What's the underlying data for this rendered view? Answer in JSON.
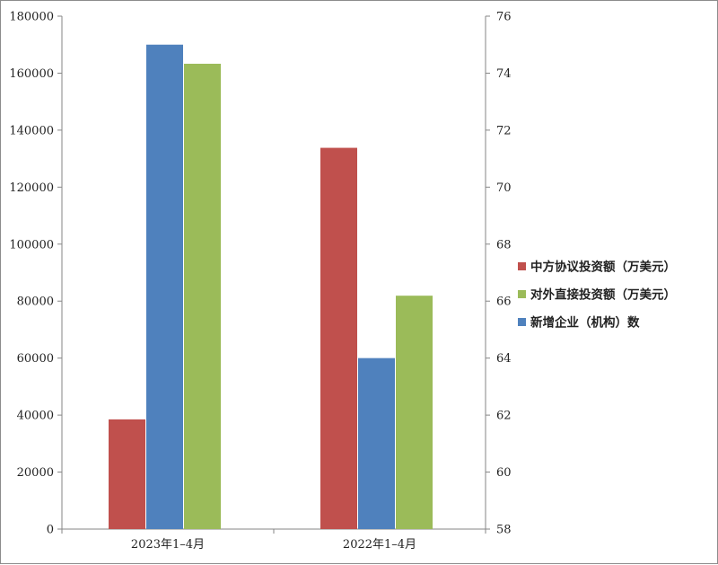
{
  "chart_data": {
    "type": "bar",
    "categories": [
      "2023年1–4月",
      "2022年1–4月"
    ],
    "series": [
      {
        "name": "中方协议投资额（万美元）",
        "axis": "left",
        "color": "#c0504d",
        "values": [
          38500,
          133800
        ]
      },
      {
        "name": "新增企业（机构）数",
        "axis": "right",
        "color": "#4f81bd",
        "values": [
          75,
          64
        ]
      },
      {
        "name": "对外直接投资额（万美元）",
        "axis": "left",
        "color": "#9bbb59",
        "values": [
          163300,
          81900
        ]
      }
    ],
    "y_left": {
      "min": 0,
      "max": 180000,
      "step": 20000,
      "ticks": [
        "0",
        "20000",
        "40000",
        "60000",
        "80000",
        "100000",
        "120000",
        "140000",
        "160000",
        "180000"
      ]
    },
    "y_right": {
      "min": 58,
      "max": 76,
      "step": 2,
      "ticks": [
        "58",
        "60",
        "62",
        "64",
        "66",
        "68",
        "70",
        "72",
        "74",
        "76"
      ]
    },
    "legend": {
      "placement": "right",
      "entries": [
        {
          "label": "中方协议投资额（万美元）",
          "color": "#c0504d"
        },
        {
          "label": "对外直接投资额（万美元）",
          "color": "#9bbb59"
        },
        {
          "label": "新增企业（机构）数",
          "color": "#4f81bd"
        }
      ]
    },
    "grid": false
  }
}
